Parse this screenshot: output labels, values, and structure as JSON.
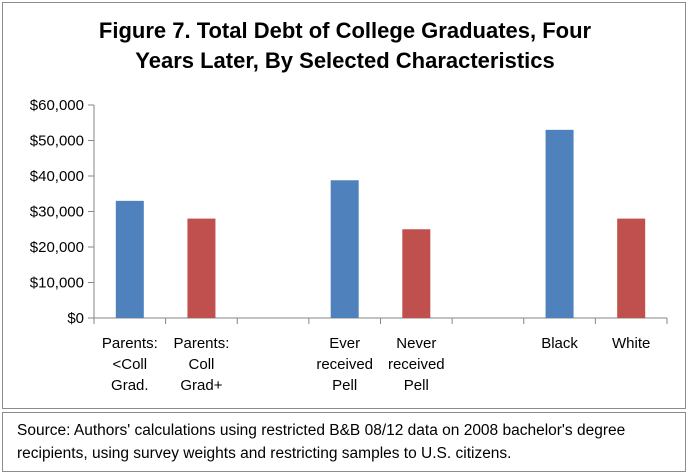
{
  "chart_data": {
    "type": "bar",
    "title_lines": [
      "Figure 7. Total Debt of College Graduates, Four",
      "Years Later, By Selected Characteristics"
    ],
    "categories": [
      [
        "Parents:",
        "<Coll",
        "Grad."
      ],
      [
        "Parents:",
        "Coll",
        "Grad+"
      ],
      [],
      [
        "Ever",
        "received",
        "Pell"
      ],
      [
        "Never",
        "received",
        "Pell"
      ],
      [],
      [
        "Black"
      ],
      [
        "White"
      ]
    ],
    "values": [
      33000,
      28000,
      null,
      38800,
      25000,
      null,
      53000,
      28000
    ],
    "bar_colors": [
      "#4f81bd",
      "#c0504d",
      null,
      "#4f81bd",
      "#c0504d",
      null,
      "#4f81bd",
      "#c0504d"
    ],
    "ylim": [
      0,
      60000
    ],
    "yticks": [
      0,
      10000,
      20000,
      30000,
      40000,
      50000,
      60000
    ],
    "ytick_labels": [
      "$0",
      "$10,000",
      "$20,000",
      "$30,000",
      "$40,000",
      "$50,000",
      "$60,000"
    ],
    "grid": false,
    "xlabel": "",
    "ylabel": ""
  },
  "source_note": "Source: Authors' calculations using restricted B&B 08/12 data on 2008 bachelor's degree recipients, using survey weights and restricting samples to U.S. citizens."
}
